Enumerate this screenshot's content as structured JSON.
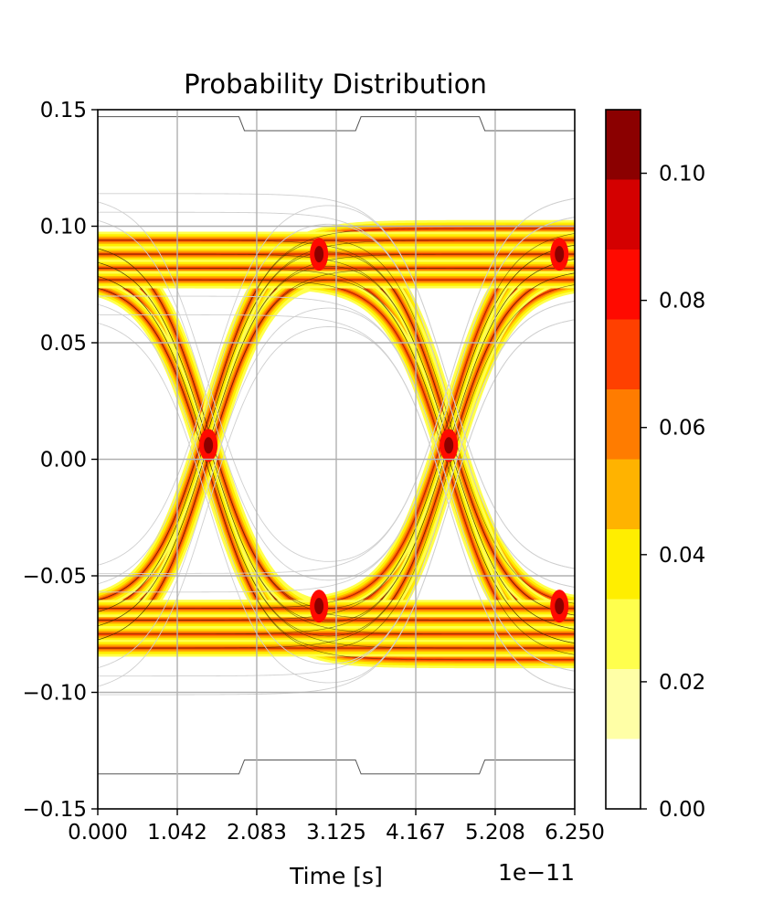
{
  "chart_data": {
    "type": "heatmap",
    "title": "Probability Distribution",
    "xlabel": "Time [s]",
    "ylabel": "",
    "x_offset_label": "1e−11",
    "xlim": [
      0,
      6.25e-11
    ],
    "ylim": [
      -0.15,
      0.15
    ],
    "x_ticks": [
      0,
      1.042e-11,
      2.083e-11,
      3.125e-11,
      4.167e-11,
      5.208e-11,
      6.25e-11
    ],
    "x_tick_labels": [
      "0.000",
      "1.042",
      "2.083",
      "3.125",
      "4.167",
      "5.208",
      "6.250"
    ],
    "y_ticks": [
      0.15,
      0.1,
      0.05,
      0.0,
      -0.05,
      -0.1,
      -0.15
    ],
    "y_tick_labels": [
      "0.15",
      "0.10",
      "0.05",
      "0.00",
      "−0.05",
      "−0.10",
      "−0.15"
    ],
    "grid": true,
    "colormap": "hot_r",
    "eye": {
      "crossing_times": [
        1.45e-11,
        4.6e-11
      ],
      "crossing_level": 0.006,
      "high_level": 0.088,
      "low_level": -0.075,
      "transition_halfwidth": 1.6e-11
    },
    "outer_contour": {
      "top_level": 0.147,
      "top_dip_level": 0.141,
      "bottom_level": -0.135,
      "bottom_bump_level": -0.129,
      "step_interval": [
        1.85e-11,
        3.45e-11
      ]
    },
    "colorbar": {
      "range": [
        0,
        0.11
      ],
      "boundaries": [
        0,
        0.011,
        0.022,
        0.033,
        0.044,
        0.055,
        0.066,
        0.077,
        0.088,
        0.099,
        0.11
      ],
      "colors": [
        "#ffffff",
        "#ffffa6",
        "#ffff4d",
        "#ffee00",
        "#ffb300",
        "#ff7c00",
        "#ff4000",
        "#ff0a00",
        "#d40000",
        "#8b0000"
      ],
      "ticks": [
        0,
        0.02,
        0.04,
        0.06,
        0.08,
        0.1
      ],
      "tick_labels": [
        "0.00",
        "0.02",
        "0.04",
        "0.06",
        "0.08",
        "0.10"
      ]
    }
  }
}
